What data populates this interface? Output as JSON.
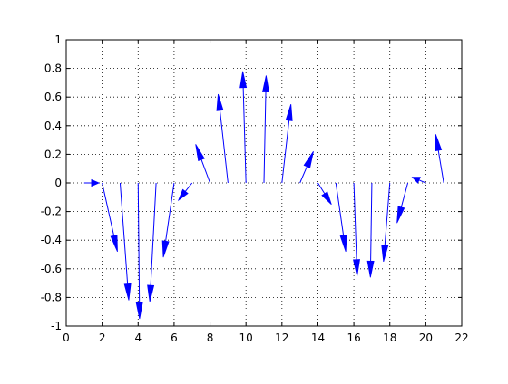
{
  "chart_data": {
    "type": "quiver",
    "title": "",
    "xlabel": "",
    "ylabel": "",
    "xlim": [
      0,
      22
    ],
    "ylim": [
      -1,
      1
    ],
    "xticks": [
      0,
      2,
      4,
      6,
      8,
      10,
      12,
      14,
      16,
      18,
      20,
      22
    ],
    "xtick_labels": [
      "0",
      "2",
      "4",
      "6",
      "8",
      "10",
      "12",
      "14",
      "16",
      "18",
      "20",
      "22"
    ],
    "yticks": [
      -1,
      -0.8,
      -0.6,
      -0.4,
      -0.2,
      0,
      0.2,
      0.4,
      0.6,
      0.8,
      1
    ],
    "ytick_labels": [
      "-1",
      "-0.8",
      "-0.6",
      "-0.4",
      "-0.2",
      "0",
      "0.2",
      "0.4",
      "0.6",
      "0.8",
      "1"
    ],
    "grid": true,
    "color": "#0000ff",
    "arrows": [
      {
        "x": 1,
        "y": 0,
        "u": 0.82,
        "v": 0.0
      },
      {
        "x": 2,
        "y": 0,
        "u": 0.85,
        "v": -0.48
      },
      {
        "x": 3,
        "y": 0,
        "u": 0.48,
        "v": -0.82
      },
      {
        "x": 4,
        "y": 0,
        "u": 0.08,
        "v": -0.95
      },
      {
        "x": 5,
        "y": 0,
        "u": -0.35,
        "v": -0.83
      },
      {
        "x": 6,
        "y": 0,
        "u": -0.6,
        "v": -0.52
      },
      {
        "x": 7,
        "y": 0,
        "u": -0.75,
        "v": -0.12
      },
      {
        "x": 8,
        "y": 0,
        "u": -0.8,
        "v": 0.27
      },
      {
        "x": 9,
        "y": 0,
        "u": -0.55,
        "v": 0.62
      },
      {
        "x": 10,
        "y": 0,
        "u": -0.18,
        "v": 0.78
      },
      {
        "x": 11,
        "y": 0,
        "u": 0.12,
        "v": 0.75
      },
      {
        "x": 12,
        "y": 0,
        "u": 0.5,
        "v": 0.55
      },
      {
        "x": 13,
        "y": 0,
        "u": 0.75,
        "v": 0.22
      },
      {
        "x": 14,
        "y": 0,
        "u": 0.75,
        "v": -0.15
      },
      {
        "x": 15,
        "y": 0,
        "u": 0.55,
        "v": -0.48
      },
      {
        "x": 16,
        "y": 0,
        "u": 0.18,
        "v": -0.65
      },
      {
        "x": 17,
        "y": 0,
        "u": -0.08,
        "v": -0.66
      },
      {
        "x": 18,
        "y": 0,
        "u": -0.35,
        "v": -0.55
      },
      {
        "x": 19,
        "y": 0,
        "u": -0.6,
        "v": -0.28
      },
      {
        "x": 20,
        "y": 0,
        "u": -0.75,
        "v": 0.04
      },
      {
        "x": 21,
        "y": 0,
        "u": -0.45,
        "v": 0.34
      }
    ]
  }
}
